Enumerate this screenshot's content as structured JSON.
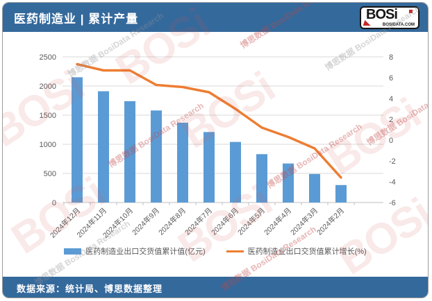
{
  "header": {
    "title": "医药制造业 | 累计产量",
    "logo": {
      "brand": "BOSi",
      "domain": "BOSIDATA.COM"
    }
  },
  "footer": {
    "source": "数据来源：统计局、博思数据整理"
  },
  "watermark": {
    "brand": "BOSi",
    "caption": "博思数据 BosiData Research"
  },
  "legend": {
    "bar_label": "医药制造业出口交货值累计值(亿元)",
    "line_label": "医药制造业出口交货值累计增长(%)"
  },
  "chart_data": {
    "type": "bar",
    "subtype": "bar+line combo, dual axis",
    "title": "医药制造业 | 累计产量",
    "categories": [
      "2024年12月",
      "2024年11月",
      "2024年10月",
      "2024年9月",
      "2024年8月",
      "2024年7月",
      "2024年6月",
      "2024年5月",
      "2024年4月",
      "2024年3月",
      "2024年2月"
    ],
    "series": [
      {
        "name": "医药制造业出口交货值累计值(亿元)",
        "type": "bar",
        "axis": "left",
        "color": "#5b9bd5",
        "values": [
          2150,
          1910,
          1740,
          1580,
          1370,
          1210,
          1040,
          830,
          670,
          490,
          300
        ]
      },
      {
        "name": "医药制造业出口交货值累计增长(%)",
        "type": "line",
        "axis": "right",
        "color": "#ed7d31",
        "values": [
          7.3,
          6.7,
          6.7,
          5.3,
          5.1,
          4.6,
          3.0,
          1.2,
          0.3,
          -0.8,
          -3.6
        ]
      }
    ],
    "left_axis": {
      "min": 0,
      "max": 2500,
      "step": 500
    },
    "right_axis": {
      "min": -6,
      "max": 8,
      "step": 2
    },
    "grid": true,
    "legend_position": "bottom",
    "x_label_rotation": -45
  }
}
